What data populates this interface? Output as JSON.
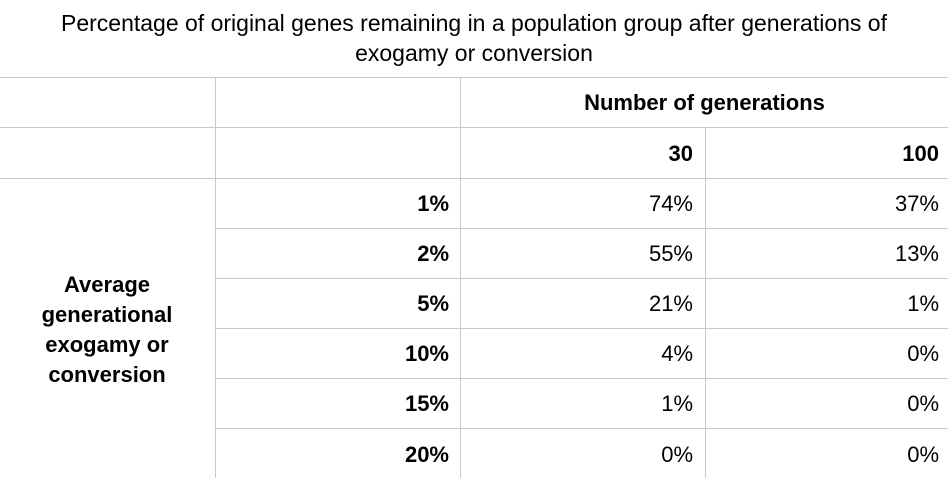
{
  "chart_data": {
    "type": "table",
    "title_lines": [
      "Percentage of original genes remaining in a population group after generations of",
      "exogamy or conversion"
    ],
    "column_group_header": "Number of generations",
    "column_headers": [
      "30",
      "100"
    ],
    "row_group_header_lines": [
      "Average",
      "generational",
      "exogamy or",
      "conversion"
    ],
    "rows": [
      {
        "label": "1%",
        "values": [
          "74%",
          "37%"
        ]
      },
      {
        "label": "2%",
        "values": [
          "55%",
          "13%"
        ]
      },
      {
        "label": "5%",
        "values": [
          "21%",
          "1%"
        ]
      },
      {
        "label": "10%",
        "values": [
          "4%",
          "0%"
        ]
      },
      {
        "label": "15%",
        "values": [
          "1%",
          "0%"
        ]
      },
      {
        "label": "20%",
        "values": [
          "0%",
          "0%"
        ]
      }
    ]
  }
}
